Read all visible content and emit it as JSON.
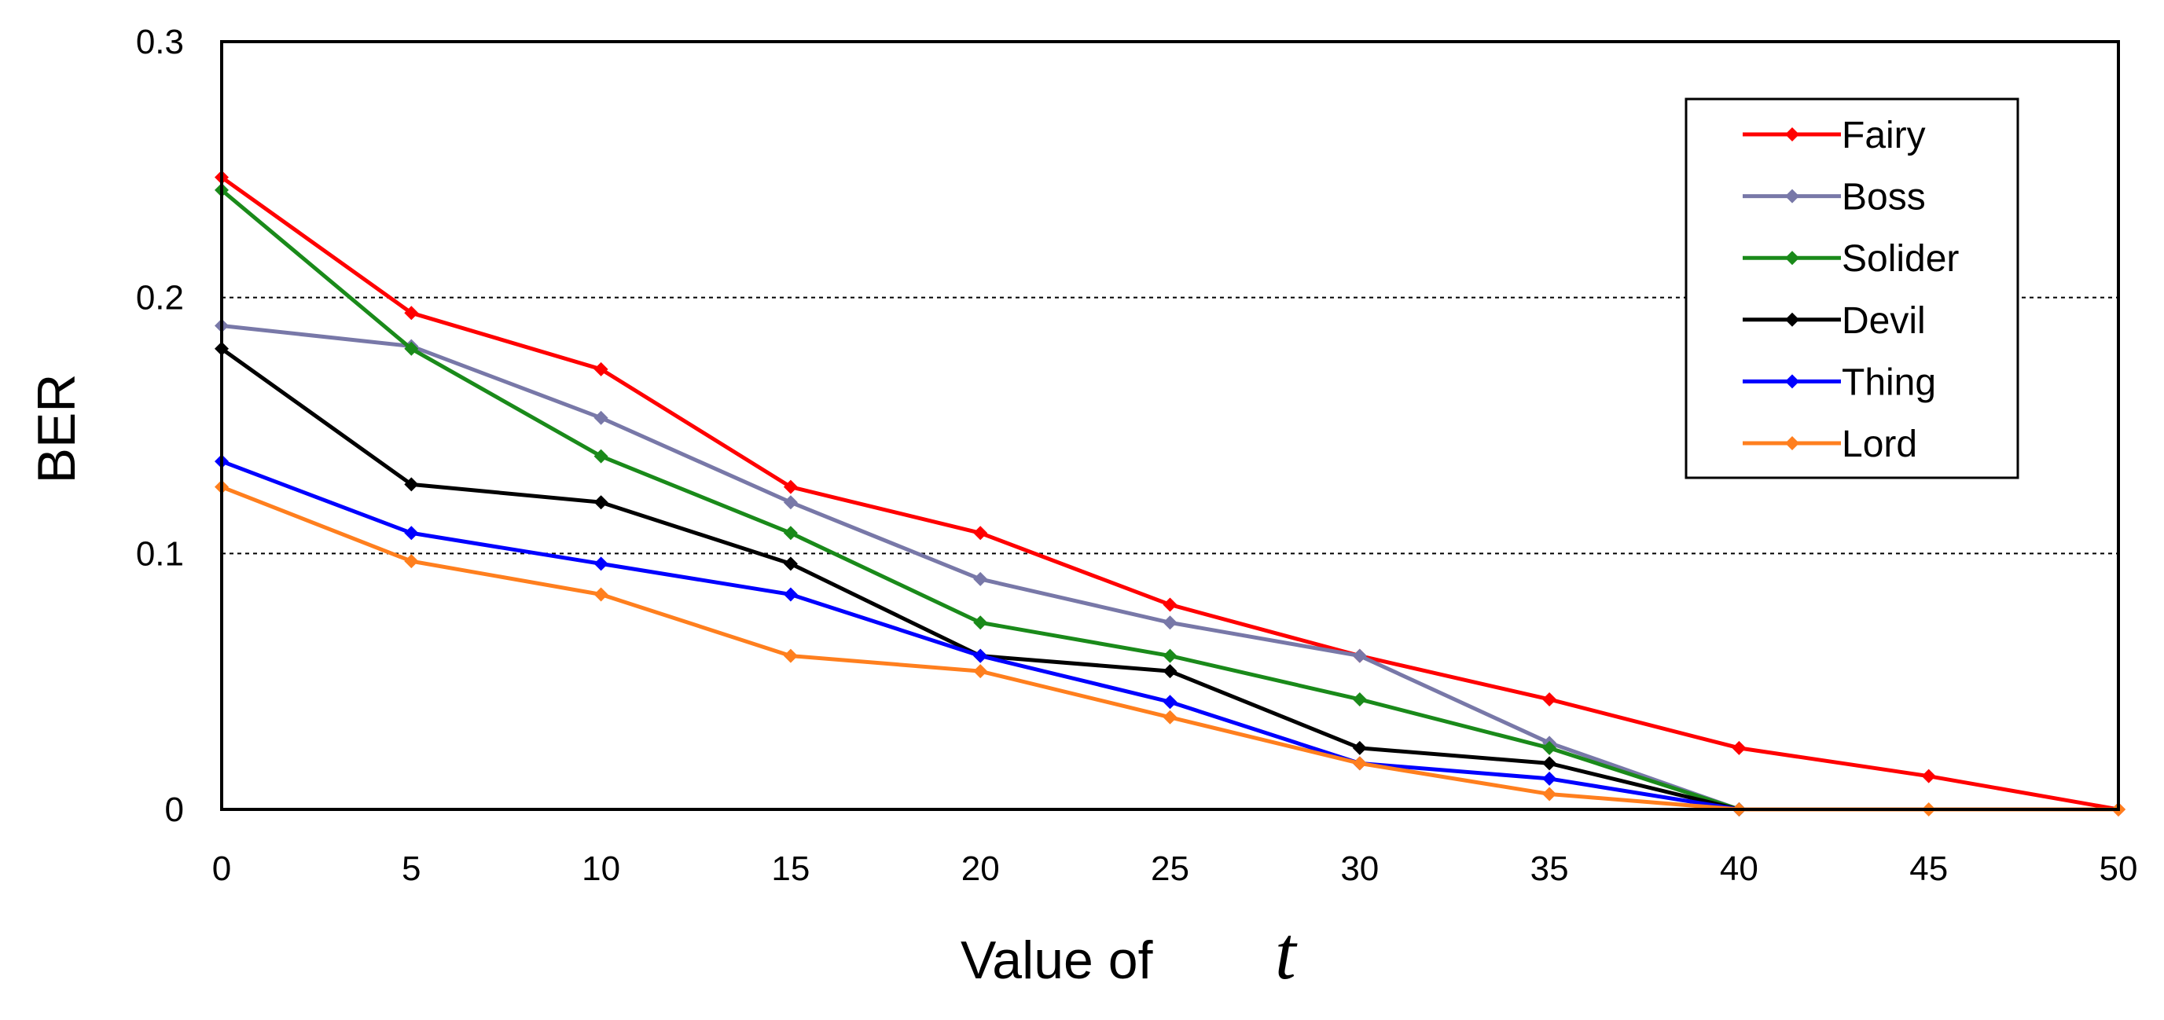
{
  "chart_data": {
    "type": "line",
    "title": "",
    "xlabel": "Value of",
    "xlabel_symbol": "t",
    "ylabel": "BER",
    "xlim": [
      0,
      50
    ],
    "ylim": [
      0,
      0.3
    ],
    "xticks": [
      "0",
      "5",
      "10",
      "15",
      "20",
      "25",
      "30",
      "35",
      "40",
      "45",
      "50"
    ],
    "yticks": [
      "0",
      "0.1",
      "0.2",
      "0.3"
    ],
    "grid": "horizontal dashed at 0.1 and 0.2",
    "legend_position": "top-right",
    "series": [
      {
        "name": "Fairy",
        "color": "#ff0000",
        "x": [
          0,
          5,
          10,
          15,
          20,
          25,
          30,
          35,
          40,
          45,
          50
        ],
        "values": [
          0.247,
          0.194,
          0.172,
          0.126,
          0.108,
          0.08,
          0.06,
          0.043,
          0.024,
          0.013,
          0
        ]
      },
      {
        "name": "Boss",
        "color": "#7878a8",
        "x": [
          0,
          5,
          10,
          15,
          20,
          25,
          30,
          35,
          40
        ],
        "values": [
          0.189,
          0.181,
          0.153,
          0.12,
          0.09,
          0.073,
          0.06,
          0.026,
          0
        ]
      },
      {
        "name": "Solider",
        "color": "#1a8a1a",
        "x": [
          0,
          5,
          10,
          15,
          20,
          25,
          30,
          35,
          40
        ],
        "values": [
          0.242,
          0.18,
          0.138,
          0.108,
          0.073,
          0.06,
          0.043,
          0.024,
          0
        ]
      },
      {
        "name": "Devil",
        "color": "#000000",
        "x": [
          0,
          5,
          10,
          15,
          20,
          25,
          30,
          35,
          40
        ],
        "values": [
          0.18,
          0.127,
          0.12,
          0.096,
          0.06,
          0.054,
          0.024,
          0.018,
          0
        ]
      },
      {
        "name": "Thing",
        "color": "#0000ff",
        "x": [
          0,
          5,
          10,
          15,
          20,
          25,
          30,
          35,
          40
        ],
        "values": [
          0.136,
          0.108,
          0.096,
          0.084,
          0.06,
          0.042,
          0.018,
          0.012,
          0
        ]
      },
      {
        "name": "Lord",
        "color": "#ff7f1e",
        "x": [
          0,
          5,
          10,
          15,
          20,
          25,
          30,
          35,
          40,
          45,
          50
        ],
        "values": [
          0.126,
          0.097,
          0.084,
          0.06,
          0.054,
          0.036,
          0.018,
          0.006,
          0,
          0,
          0
        ]
      }
    ]
  }
}
